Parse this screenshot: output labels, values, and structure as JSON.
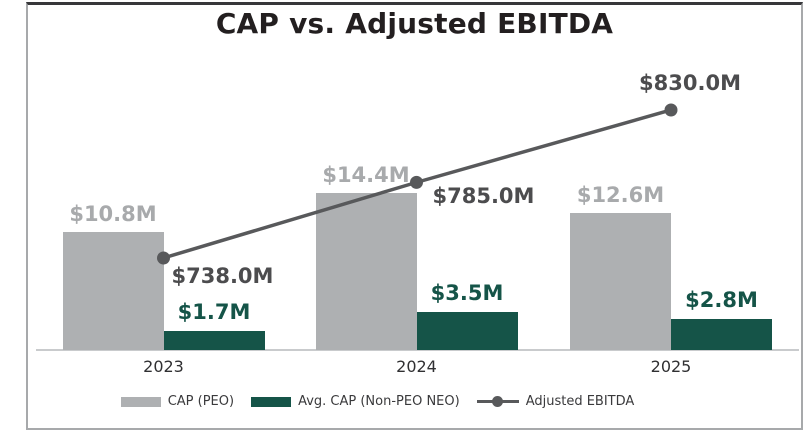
{
  "title": "CAP vs. Adjusted EBITDA",
  "colors": {
    "bar_gray": "#aeb0b2",
    "bar_gray_label": "#a8aaac",
    "bar_green": "#155448",
    "bar_green_label": "#155448",
    "line_gray": "#58595b",
    "ebitda_label": "#4c4c4e",
    "title_color": "#231f20",
    "axis_label": "#303032",
    "legend_text": "#3a3a3c",
    "baseline": "#c9cbcd"
  },
  "chart_data": {
    "type": "bar",
    "subtype": "grouped-bar-with-line-overlay",
    "title": "CAP vs. Adjusted EBITDA",
    "categories": [
      "2023",
      "2024",
      "2025"
    ],
    "series": [
      {
        "name": "CAP (PEO)",
        "type": "bar",
        "color_key": "bar_gray",
        "values": [
          10.8,
          14.4,
          12.6
        ],
        "labels": [
          "$10.8M",
          "$14.4M",
          "$12.6M"
        ],
        "unit": "$M"
      },
      {
        "name": "Avg. CAP (Non-PEO NEO)",
        "type": "bar",
        "color_key": "bar_green",
        "values": [
          1.7,
          3.5,
          2.8
        ],
        "labels": [
          "$1.7M",
          "$3.5M",
          "$2.8M"
        ],
        "unit": "$M"
      },
      {
        "name": "Adjusted EBITDA",
        "type": "line",
        "color_key": "line_gray",
        "values": [
          738.0,
          785.0,
          830.0
        ],
        "labels": [
          "$738.0M",
          "$785.0M",
          "$830.0M"
        ],
        "label_positions": [
          "below-right",
          "right",
          "above"
        ],
        "unit": "$M"
      }
    ],
    "grid": false,
    "y_axis_visible": false,
    "x_axis_line": true,
    "legend_position": "bottom"
  },
  "legend": {
    "items": [
      {
        "label": "CAP (PEO)",
        "swatch": "bar_gray",
        "kind": "rect"
      },
      {
        "label": "Avg. CAP (Non-PEO NEO)",
        "swatch": "bar_green",
        "kind": "rect"
      },
      {
        "label": "Adjusted EBITDA",
        "swatch": "line_gray",
        "kind": "line-dot"
      }
    ]
  }
}
